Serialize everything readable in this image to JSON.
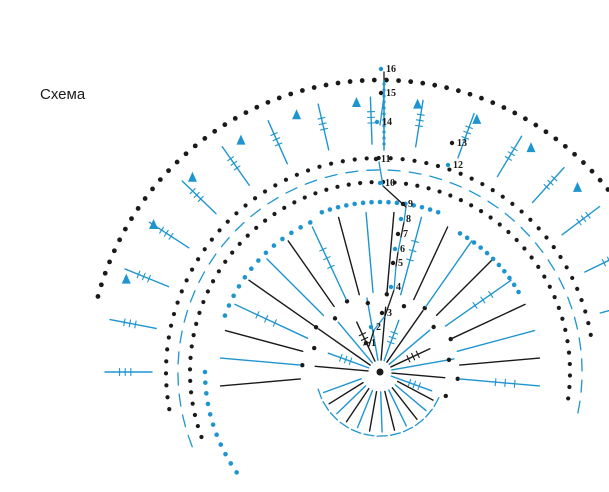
{
  "caption": "Схема",
  "colors": {
    "black": "#1a1a1a",
    "blue": "#1e95cf",
    "background": "#ffffff"
  },
  "row_numbers": [
    "1",
    "2",
    "3",
    "4",
    "5",
    "6",
    "7",
    "8",
    "9",
    "10",
    "11",
    "12",
    "13",
    "14",
    "15",
    "16"
  ],
  "symbols": [
    "chain-dot",
    "double-crochet",
    "double-crochet-cluster",
    "picot-triangle",
    "slip-stitch-ring"
  ]
}
